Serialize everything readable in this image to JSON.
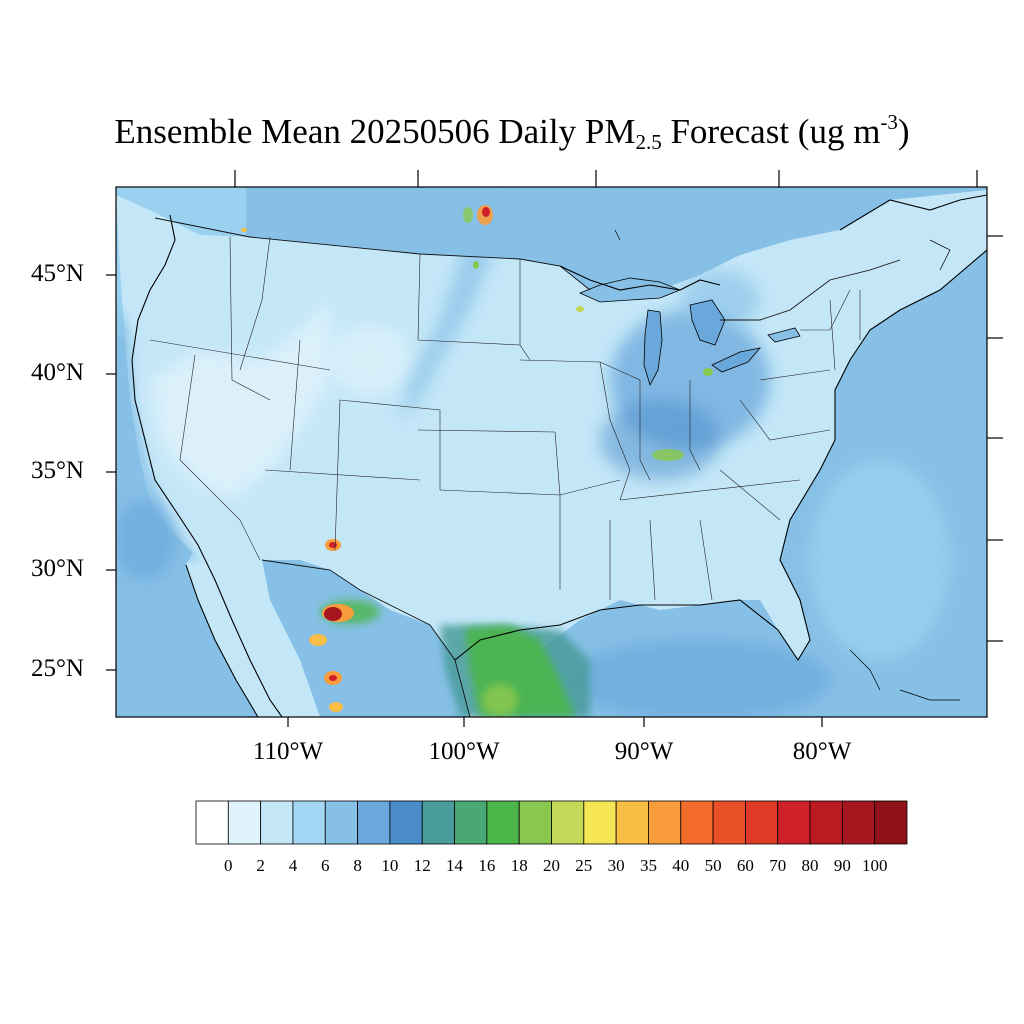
{
  "title": {
    "prefix": "Ensemble Mean 20250506 Daily PM",
    "sub": "2.5",
    "mid": " Forecast (ug m",
    "sup": "-3",
    "suffix": ")"
  },
  "axes": {
    "lat_labels": [
      "45°N",
      "40°N",
      "35°N",
      "30°N",
      "25°N"
    ],
    "lon_labels": [
      "110°W",
      "100°W",
      "90°W",
      "80°W"
    ]
  },
  "colorbar": {
    "labels": [
      "0",
      "2",
      "4",
      "6",
      "8",
      "10",
      "12",
      "14",
      "16",
      "18",
      "20",
      "25",
      "30",
      "35",
      "40",
      "50",
      "60",
      "70",
      "80",
      "90",
      "100"
    ],
    "colors": [
      "#ffffff",
      "#e1f3fc",
      "#c4e7f8",
      "#a2d8f4",
      "#86c0e6",
      "#6aa8dc",
      "#4a8cca",
      "#4a9c9c",
      "#4aa874",
      "#4cb64a",
      "#88c850",
      "#c4d858",
      "#f6e656",
      "#f8be46",
      "#f89c3c",
      "#f46c2c",
      "#ea5028",
      "#de3a26",
      "#d0202a",
      "#bc1a22",
      "#a6161e",
      "#8e1218"
    ]
  },
  "colors": {
    "ocean": "#86c0e6",
    "land_base": "#c4e7f8",
    "coast_line": "#000000"
  }
}
